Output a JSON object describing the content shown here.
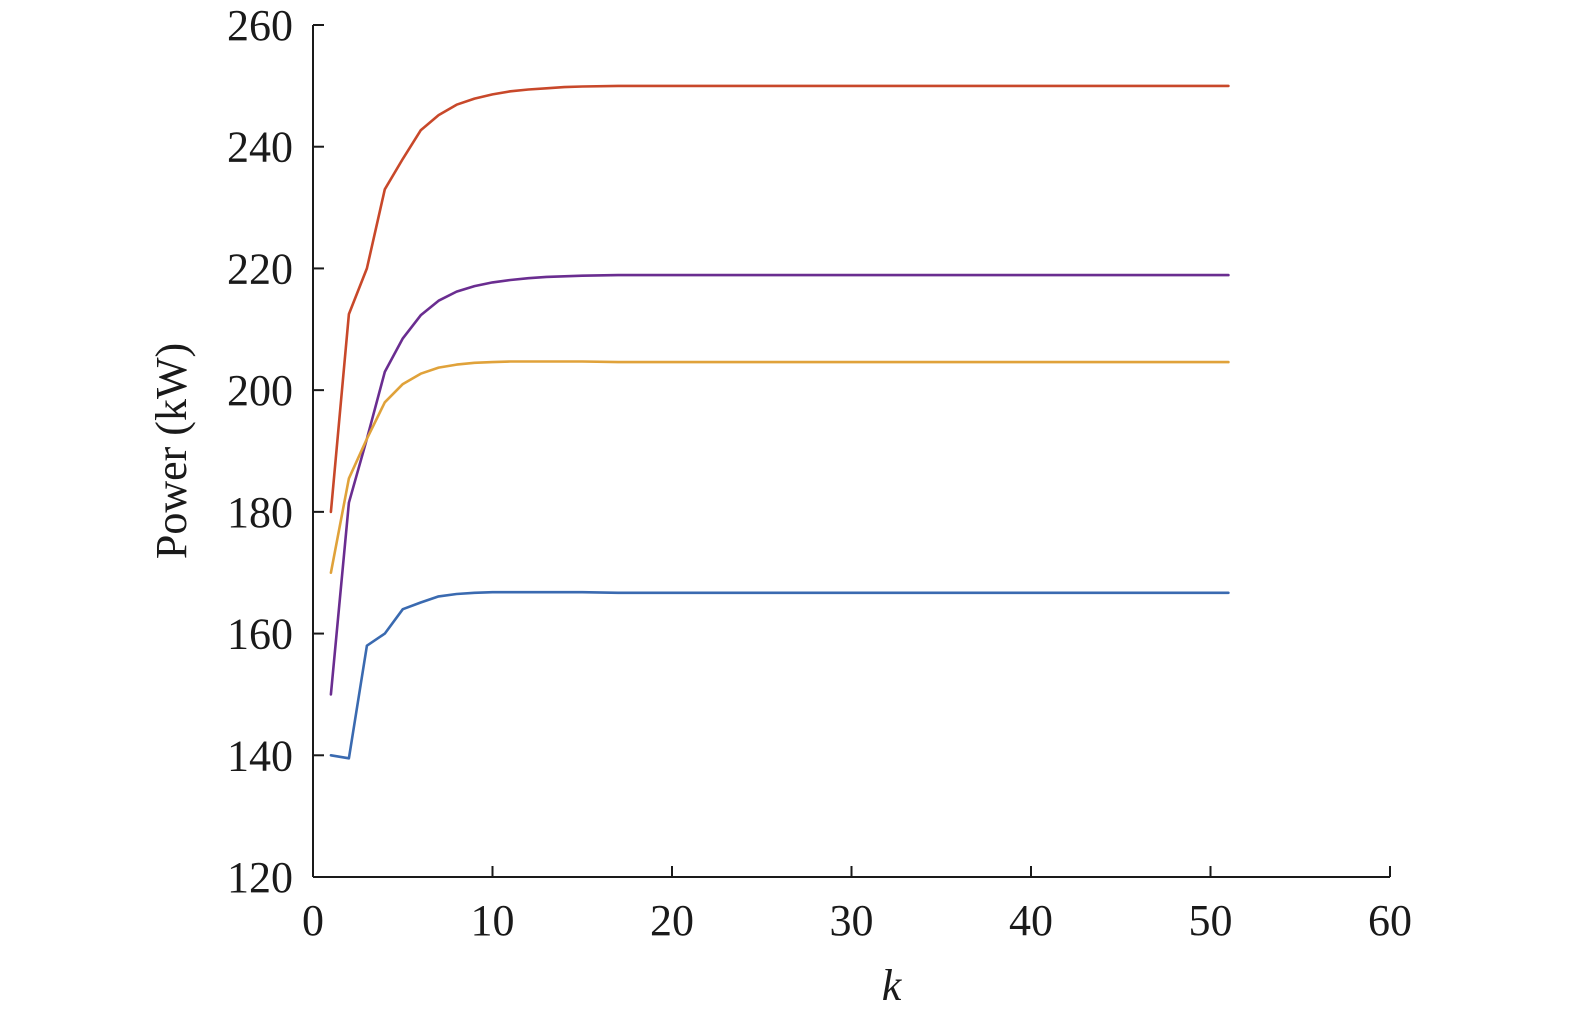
{
  "chart_data": {
    "type": "line",
    "title": "",
    "xlabel": "k",
    "ylabel": "Power (kW)",
    "xlim": [
      0,
      60
    ],
    "ylim": [
      120,
      260
    ],
    "xticks": [
      0,
      10,
      20,
      30,
      40,
      50,
      60
    ],
    "yticks": [
      120,
      140,
      160,
      180,
      200,
      220,
      240,
      260
    ],
    "xtick_labels": [
      "0",
      "10",
      "20",
      "30",
      "40",
      "50",
      "60"
    ],
    "ytick_labels": [
      "120",
      "140",
      "160",
      "180",
      "200",
      "220",
      "240",
      "260"
    ],
    "grid": false,
    "legend": "none",
    "series": [
      {
        "color": "#c8482a",
        "x": [
          1,
          2,
          3,
          4,
          5,
          6,
          7,
          8,
          9,
          10,
          11,
          12,
          13,
          14,
          15,
          17,
          20,
          25,
          30,
          40,
          51
        ],
        "y": [
          180,
          212.5,
          220,
          233,
          238,
          242.7,
          245.2,
          246.9,
          247.9,
          248.6,
          249.1,
          249.4,
          249.6,
          249.8,
          249.9,
          250,
          250,
          250,
          250,
          250,
          250
        ]
      },
      {
        "color": "#6a2d90",
        "x": [
          1,
          2,
          3,
          4,
          5,
          6,
          7,
          8,
          9,
          10,
          11,
          12,
          13,
          14,
          15,
          17,
          20,
          25,
          30,
          40,
          51
        ],
        "y": [
          150,
          181.5,
          192,
          203,
          208.5,
          212.3,
          214.7,
          216.2,
          217.1,
          217.7,
          218.1,
          218.4,
          218.6,
          218.7,
          218.8,
          218.9,
          218.9,
          218.9,
          218.9,
          218.9,
          218.9
        ]
      },
      {
        "color": "#e0a23a",
        "x": [
          1,
          2,
          3,
          4,
          5,
          6,
          7,
          8,
          9,
          10,
          11,
          12,
          13,
          15,
          17,
          20,
          25,
          30,
          40,
          51
        ],
        "y": [
          170,
          185.5,
          192,
          198,
          201,
          202.7,
          203.7,
          204.2,
          204.5,
          204.6,
          204.7,
          204.7,
          204.7,
          204.7,
          204.6,
          204.6,
          204.6,
          204.6,
          204.6,
          204.6
        ]
      },
      {
        "color": "#3a6ab0",
        "x": [
          1,
          2,
          3,
          4,
          5,
          6,
          7,
          8,
          9,
          10,
          11,
          12,
          13,
          15,
          17,
          20,
          25,
          30,
          40,
          51
        ],
        "y": [
          140,
          139.5,
          158,
          160,
          164,
          165.1,
          166.1,
          166.5,
          166.7,
          166.8,
          166.8,
          166.8,
          166.8,
          166.8,
          166.7,
          166.7,
          166.7,
          166.7,
          166.7,
          166.7
        ]
      }
    ]
  }
}
